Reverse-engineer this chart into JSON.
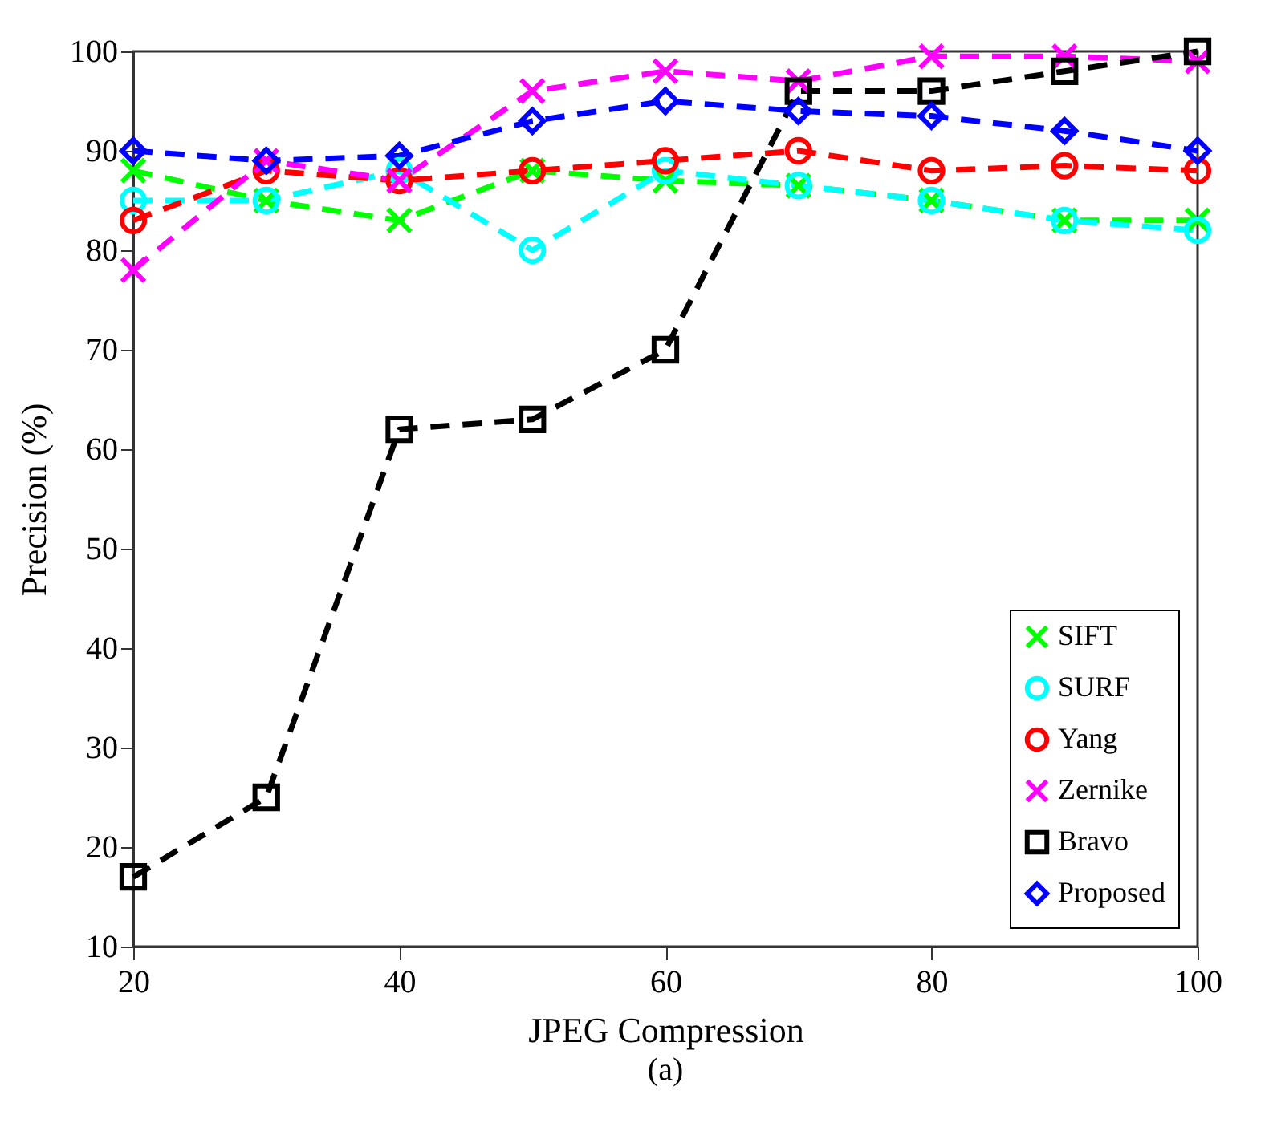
{
  "chart_data": {
    "type": "line",
    "xlabel": "JPEG Compression",
    "ylabel": "Precision (%)",
    "annotations": [
      "(a)"
    ],
    "x": [
      20,
      30,
      40,
      50,
      60,
      70,
      80,
      90,
      100
    ],
    "series": [
      {
        "name": "SIFT",
        "color": "#00ff00",
        "marker": "cross",
        "values": [
          88,
          85,
          83,
          88,
          87,
          86.5,
          85,
          83,
          83
        ]
      },
      {
        "name": "SURF",
        "color": "#00ffff",
        "marker": "circle",
        "values": [
          85,
          85,
          88,
          80,
          88,
          86.5,
          85,
          83,
          82
        ]
      },
      {
        "name": "Yang",
        "color": "#ff0000",
        "marker": "circle",
        "values": [
          83,
          88,
          87,
          88,
          89,
          90,
          88,
          88.5,
          88
        ]
      },
      {
        "name": "Zernike",
        "color": "#ff00ff",
        "marker": "cross",
        "values": [
          78,
          89,
          87,
          96,
          98,
          97,
          99.5,
          99.5,
          99
        ]
      },
      {
        "name": "Bravo",
        "color": "#000000",
        "marker": "square",
        "values": [
          17,
          25,
          62,
          63,
          70,
          96,
          96,
          98,
          100
        ]
      },
      {
        "name": "Proposed",
        "color": "#0000ff",
        "marker": "diamond",
        "values": [
          90,
          89,
          89.5,
          93,
          95,
          94,
          93.5,
          92,
          90
        ]
      }
    ],
    "xlim": [
      20,
      100
    ],
    "xticks": [
      20,
      40,
      60,
      80,
      100
    ],
    "ylim": [
      10,
      100
    ],
    "yticks": [
      10,
      20,
      30,
      40,
      50,
      60,
      70,
      80,
      90,
      100
    ],
    "grid": false,
    "legend": "bottom right",
    "line_style": "dashed"
  }
}
